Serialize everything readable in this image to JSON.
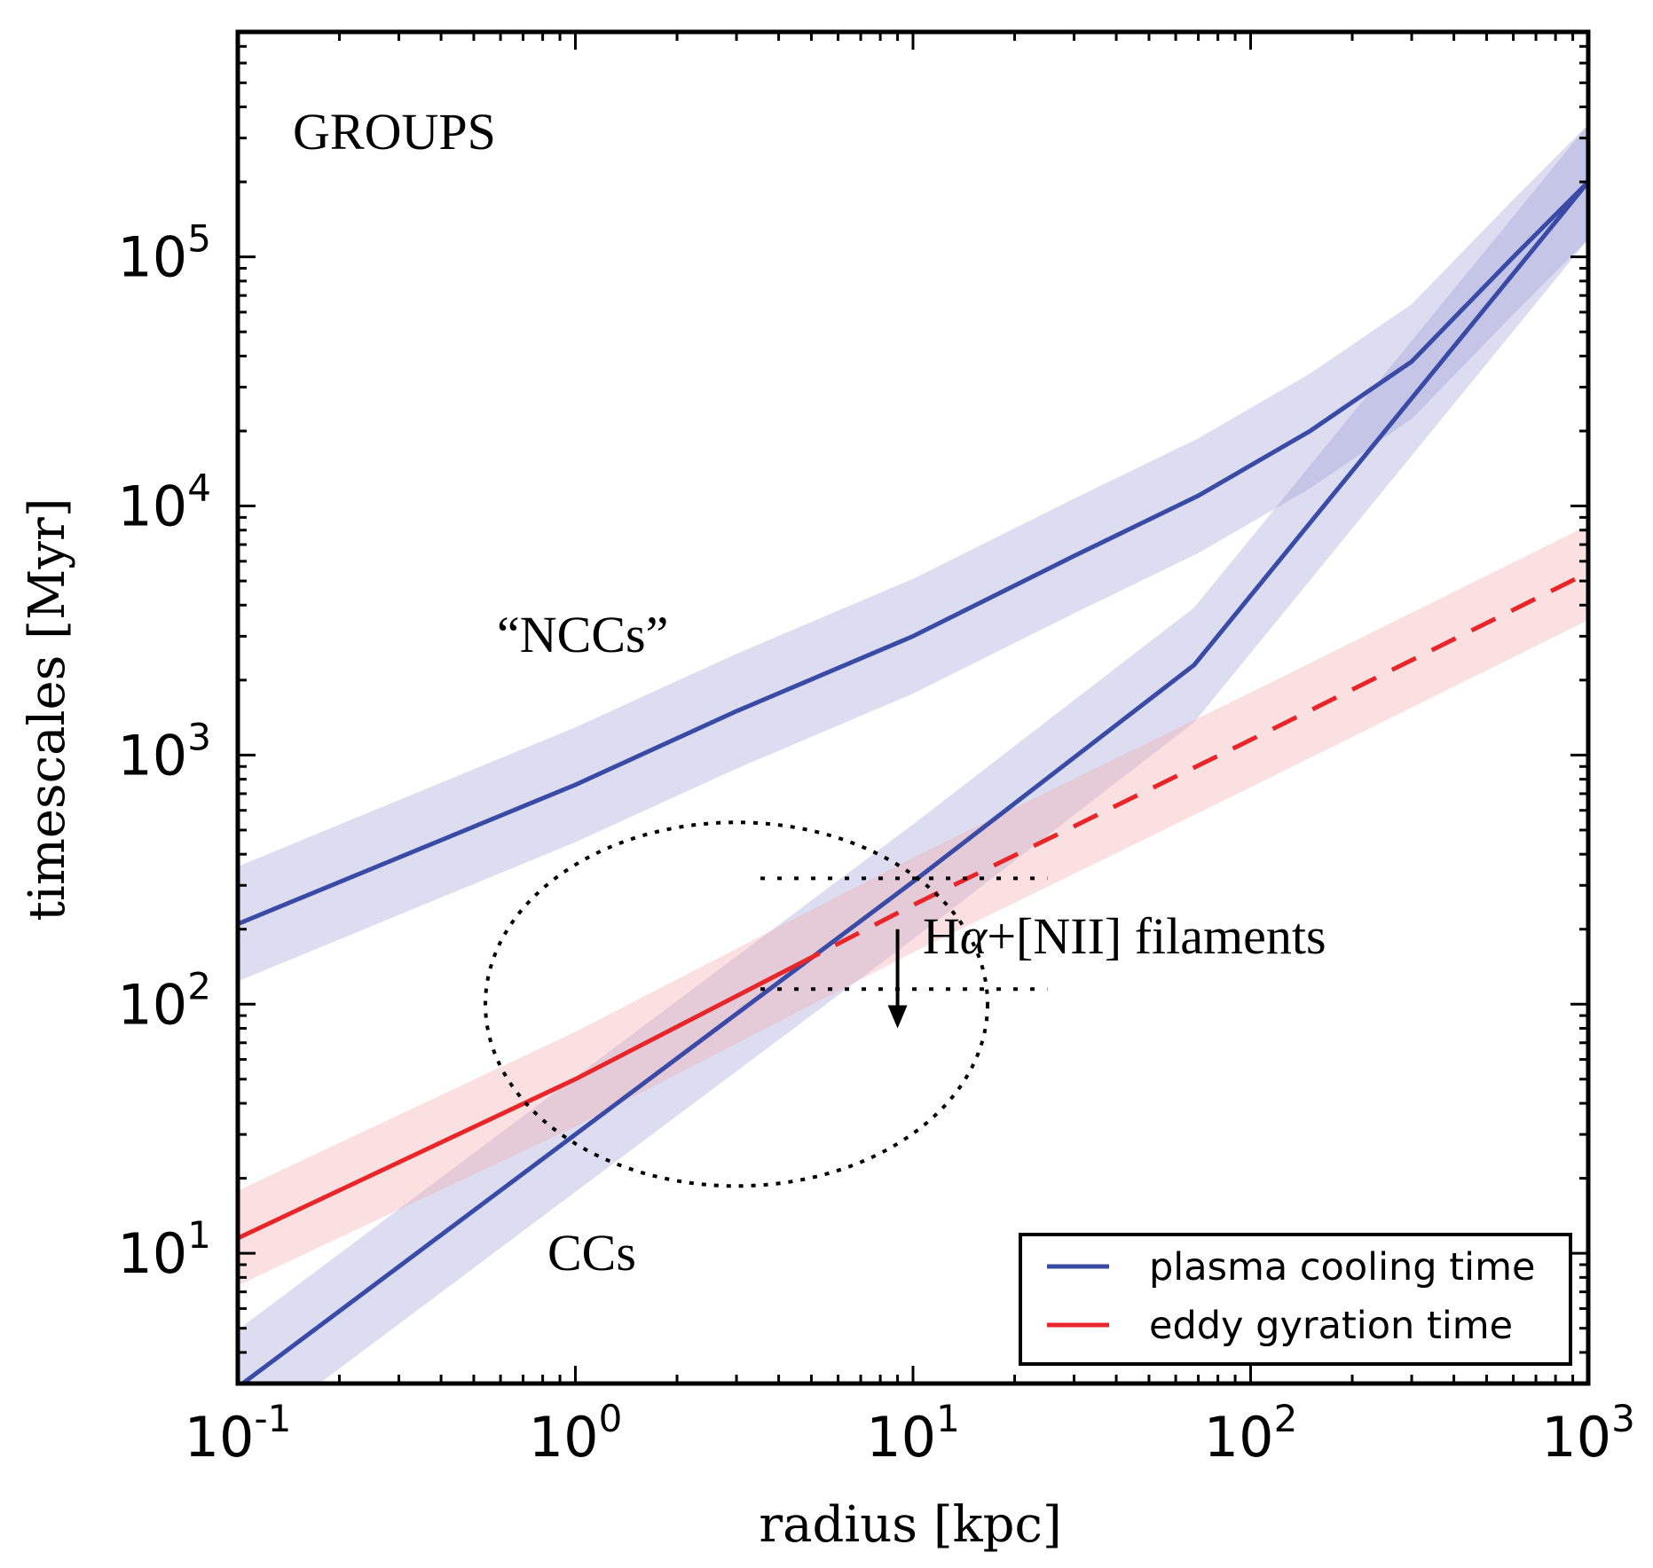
{
  "chart_data": {
    "type": "line",
    "title": "",
    "xlabel": "radius [kpc]",
    "ylabel": "timescales [Myr]",
    "xscale": "log",
    "yscale": "log",
    "xlim": [
      0.1,
      1000
    ],
    "ylim": [
      3,
      800000
    ],
    "xticks": [
      {
        "value": 0.1,
        "base": "10",
        "exp": "-1"
      },
      {
        "value": 1,
        "base": "10",
        "exp": "0"
      },
      {
        "value": 10,
        "base": "10",
        "exp": "1"
      },
      {
        "value": 100,
        "base": "10",
        "exp": "2"
      },
      {
        "value": 1000,
        "base": "10",
        "exp": "3"
      }
    ],
    "yticks": [
      {
        "value": 10,
        "base": "10",
        "exp": "1"
      },
      {
        "value": 100,
        "base": "10",
        "exp": "2"
      },
      {
        "value": 1000,
        "base": "10",
        "exp": "3"
      },
      {
        "value": 10000,
        "base": "10",
        "exp": "4"
      },
      {
        "value": 100000,
        "base": "10",
        "exp": "5"
      }
    ],
    "series": [
      {
        "name": "plasma cooling time (NCCs)",
        "color": "#3a4ba6",
        "style": "solid",
        "x": [
          0.1,
          1,
          3,
          10,
          30,
          70,
          150,
          300,
          600,
          1000
        ],
        "values": [
          210,
          760,
          1500,
          3000,
          6300,
          11000,
          20000,
          38000,
          100000,
          200000
        ],
        "band_factor": 1.7
      },
      {
        "name": "plasma cooling time (CCs)",
        "color": "#3a4ba6",
        "style": "solid",
        "x": [
          0.1,
          1,
          10,
          68,
          1000
        ],
        "values": [
          2.9,
          30,
          310,
          2300,
          200000
        ],
        "band_factor": 1.7
      },
      {
        "name": "eddy gyration time",
        "color": "#e8262a",
        "style": "solid-then-dashed",
        "dash_start_x": 4.5,
        "x": [
          0.1,
          1,
          10,
          100,
          1000
        ],
        "values": [
          11.5,
          50,
          250,
          1150,
          5400
        ],
        "band_factor": 1.55
      }
    ],
    "band_colors": {
      "blue": "#8f8fd0",
      "red": "#f4a5a8"
    },
    "legend": {
      "position": "bottom-right",
      "entries": [
        {
          "label": "plasma cooling time",
          "color": "#3a4ba6",
          "style": "solid"
        },
        {
          "label": "eddy gyration time",
          "color": "#e8262a",
          "style": "dashed"
        }
      ]
    },
    "annotations": {
      "groups": "GROUPS",
      "nccs": "“NCCs”",
      "ccs": "CCs",
      "filaments_prefix": "H",
      "filaments_alpha": "α",
      "filaments_suffix": "+[NII] filaments"
    },
    "filament_region": {
      "ellipse_center": {
        "x": 3,
        "y": 100
      },
      "x_range": [
        4.5,
        25
      ],
      "y_upper": 320,
      "y_lower": 115,
      "arrow_x": 9,
      "arrow_from_y": 200,
      "arrow_to_y": 80
    }
  }
}
